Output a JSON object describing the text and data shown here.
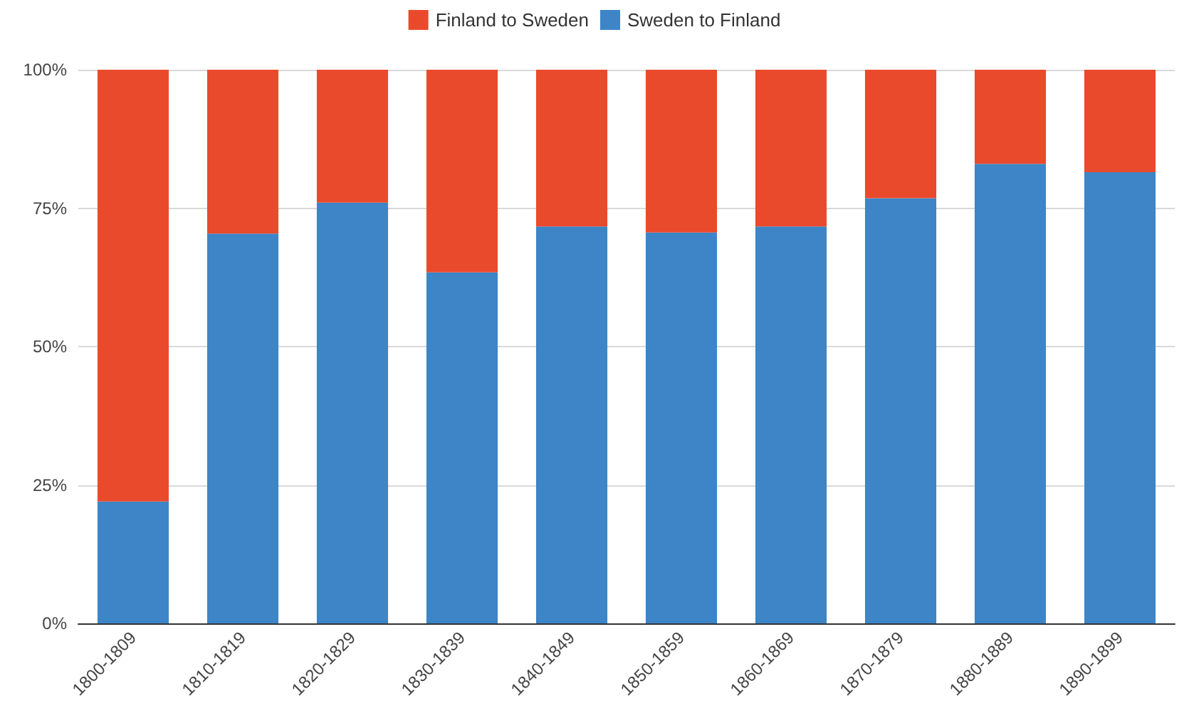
{
  "chart_data": {
    "type": "bar",
    "stacked": true,
    "categories": [
      "1800-1809",
      "1810-1819",
      "1820-1829",
      "1830-1839",
      "1840-1849",
      "1850-1859",
      "1860-1869",
      "1870-1879",
      "1880-1889",
      "1890-1899"
    ],
    "series": [
      {
        "name": "Sweden to Finland",
        "color": "#3d85c6",
        "values": [
          22,
          70.4,
          76,
          63.4,
          71.7,
          70.6,
          71.7,
          76.8,
          83,
          81.5
        ]
      },
      {
        "name": "Finland to Sweden",
        "color": "#ea4a2c",
        "values": [
          78,
          29.6,
          24,
          36.6,
          28.3,
          29.4,
          28.3,
          23.2,
          17,
          18.5
        ]
      }
    ],
    "ylim": [
      0,
      100
    ],
    "yticks": [
      {
        "value": 0,
        "label": "0%"
      },
      {
        "value": 25,
        "label": "25%"
      },
      {
        "value": 50,
        "label": "50%"
      },
      {
        "value": 75,
        "label": "75%"
      },
      {
        "value": 100,
        "label": "100%"
      }
    ],
    "grid": "y",
    "legend": "top"
  }
}
